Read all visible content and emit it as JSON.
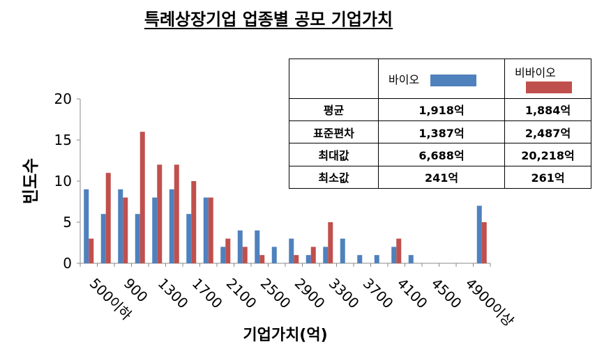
{
  "chart_data": {
    "type": "bar",
    "title": "특례상장기업 업종별 공모 기업가치",
    "xlabel": "기업가치(억)",
    "ylabel": "빈도수",
    "ylim": [
      0,
      20
    ],
    "yticks": [
      "0",
      "5",
      "10",
      "15",
      "20"
    ],
    "x_tick_labels": [
      "500이하",
      "900",
      "1300",
      "1700",
      "2100",
      "2500",
      "2900",
      "3300",
      "3700",
      "4100",
      "4500",
      "4900이상"
    ],
    "series": [
      {
        "name": "바이오",
        "color": "#4f81bd",
        "values": [
          9,
          6,
          9,
          6,
          8,
          9,
          6,
          8,
          2,
          4,
          4,
          2,
          3,
          1,
          2,
          3,
          1,
          1,
          2,
          1,
          0,
          0,
          0,
          7
        ]
      },
      {
        "name": "비바이오",
        "color": "#c0504d",
        "values": [
          3,
          11,
          8,
          16,
          12,
          12,
          10,
          8,
          3,
          2,
          1,
          0,
          1,
          2,
          5,
          0,
          0,
          0,
          3,
          0,
          0,
          0,
          0,
          5
        ]
      }
    ],
    "grid": false,
    "legend": "table-header"
  },
  "stats_table": {
    "header": [
      "",
      "바이오",
      "비바이오"
    ],
    "rows": [
      {
        "label": "평균",
        "bio": "1,918억",
        "nonbio": "1,884억"
      },
      {
        "label": "표준편차",
        "bio": "1,387억",
        "nonbio": "2,487억"
      },
      {
        "label": "최대값",
        "bio": "6,688억",
        "nonbio": "20,218억"
      },
      {
        "label": "최소값",
        "bio": "241억",
        "nonbio": "261억"
      }
    ]
  }
}
